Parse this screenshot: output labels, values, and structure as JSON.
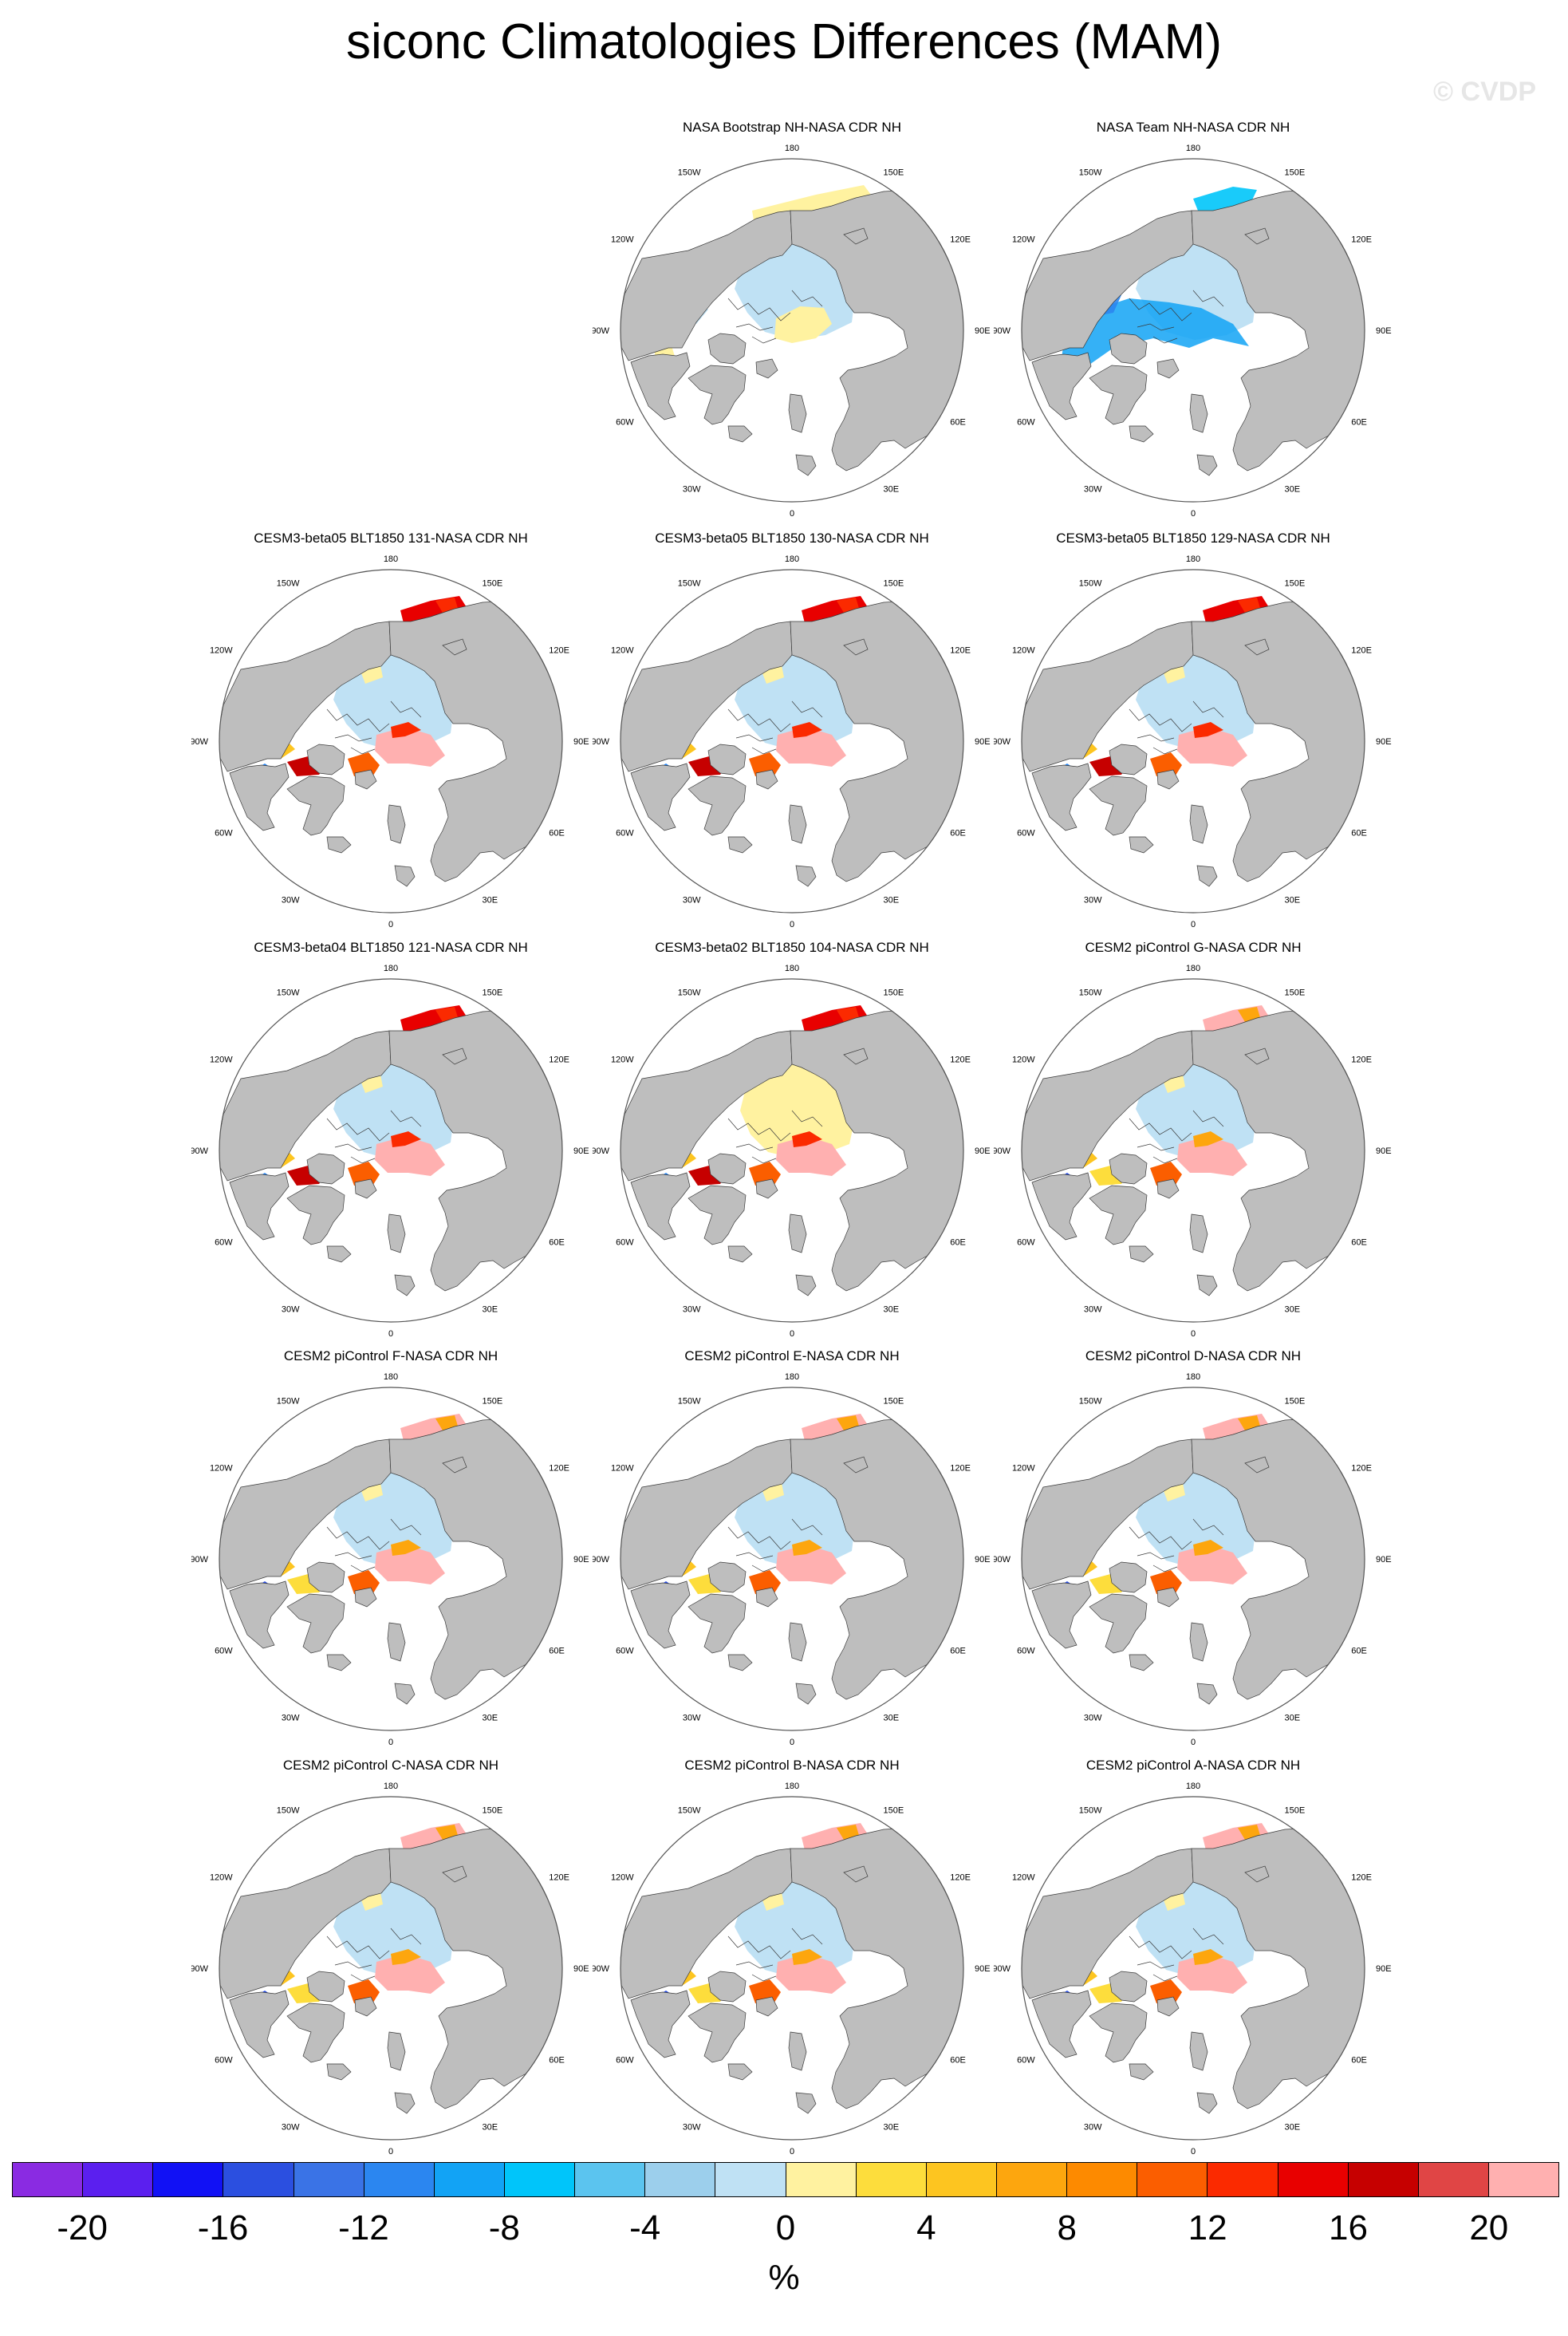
{
  "title": "siconc Climatologies Differences (MAM)",
  "watermark": "© CVDP",
  "longitude_labels": [
    "180",
    "150E",
    "120E",
    "90E",
    "60E",
    "30E",
    "0",
    "30W",
    "60W",
    "90W",
    "120W",
    "150W"
  ],
  "colors": {
    "land": "#bebebe",
    "ocean": "#ffffff",
    "coast": "#3a3a3a",
    "border": "#555555"
  },
  "panels": [
    {
      "title": "NASA Bootstrap NH-NASA CDR NH",
      "pattern": "bootstrap"
    },
    {
      "title": "NASA Team NH-NASA CDR NH",
      "pattern": "team"
    },
    {
      "title": "CESM3-beta05 BLT1850 131-NASA CDR NH",
      "pattern": "beta05"
    },
    {
      "title": "CESM3-beta05 BLT1850 130-NASA CDR NH",
      "pattern": "beta05"
    },
    {
      "title": "CESM3-beta05 BLT1850 129-NASA CDR NH",
      "pattern": "beta05"
    },
    {
      "title": "CESM3-beta04 BLT1850 121-NASA CDR NH",
      "pattern": "beta04"
    },
    {
      "title": "CESM3-beta02 BLT1850 104-NASA CDR NH",
      "pattern": "beta02"
    },
    {
      "title": "CESM2 piControl G-NASA CDR NH",
      "pattern": "cesm2"
    },
    {
      "title": "CESM2 piControl F-NASA CDR NH",
      "pattern": "cesm2"
    },
    {
      "title": "CESM2 piControl E-NASA CDR NH",
      "pattern": "cesm2"
    },
    {
      "title": "CESM2 piControl D-NASA CDR NH",
      "pattern": "cesm2"
    },
    {
      "title": "CESM2 piControl C-NASA CDR NH",
      "pattern": "cesm2"
    },
    {
      "title": "CESM2 piControl B-NASA CDR NH",
      "pattern": "cesm2"
    },
    {
      "title": "CESM2 piControl A-NASA CDR NH",
      "pattern": "cesm2"
    }
  ],
  "colorbar": {
    "colors": [
      "#8a2be2",
      "#5b1fef",
      "#1111f5",
      "#2b4fe0",
      "#3a73e6",
      "#2b86f0",
      "#12a3f5",
      "#00c5fa",
      "#5bc4ef",
      "#9ccfec",
      "#bfe1f4",
      "#fff2a0",
      "#fddd3c",
      "#fdc520",
      "#fda60e",
      "#fd8a00",
      "#fb5e00",
      "#fb2a00",
      "#e80000",
      "#c60000",
      "#e04545",
      "#ffb0b0"
    ],
    "labels": [
      "-20",
      "-16",
      "-12",
      "-8",
      "-4",
      "0",
      "4",
      "8",
      "12",
      "16",
      "20"
    ],
    "units": "%"
  }
}
